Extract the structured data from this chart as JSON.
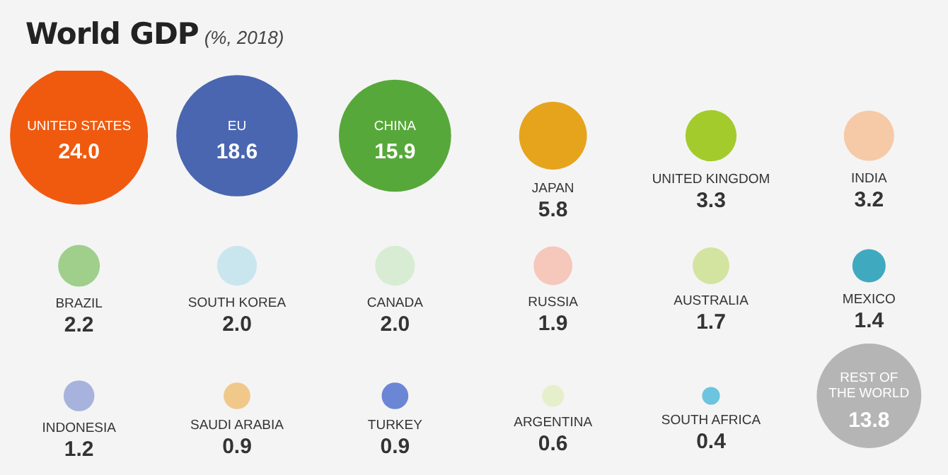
{
  "chart_data": {
    "type": "other",
    "title": "World GDP",
    "subtitle": "(%, 2018)",
    "categories": [
      "UNITED STATES",
      "EU",
      "CHINA",
      "JAPAN",
      "UNITED KINGDOM",
      "INDIA",
      "BRAZIL",
      "SOUTH KOREA",
      "CANADA",
      "RUSSIA",
      "AUSTRALIA",
      "MEXICO",
      "INDONESIA",
      "SAUDI ARABIA",
      "TURKEY",
      "ARGENTINA",
      "SOUTH AFRICA",
      "REST OF THE WORLD"
    ],
    "values": [
      24.0,
      18.6,
      15.9,
      5.8,
      3.3,
      3.2,
      2.2,
      2.0,
      2.0,
      1.9,
      1.7,
      1.4,
      1.2,
      0.9,
      0.9,
      0.6,
      0.4,
      13.8
    ],
    "colors": [
      "#ef5a0f",
      "#4a66b0",
      "#57a83a",
      "#e5a41c",
      "#a3cb2b",
      "#f6c9a7",
      "#9fcf8a",
      "#c9e6ee",
      "#d7ecd3",
      "#f6c7bb",
      "#d3e3a0",
      "#3fa9c0",
      "#a7b3dc",
      "#f0c98a",
      "#6c86d6",
      "#e6efcb",
      "#6cc4de",
      "#b5b5b5"
    ],
    "value_labels": [
      "24.0",
      "18.6",
      "15.9",
      "5.8",
      "3.3",
      "3.2",
      "2.2",
      "2.0",
      "2.0",
      "1.9",
      "1.7",
      "1.4",
      "1.2",
      "0.9",
      "0.9",
      "0.6",
      "0.4",
      "13.8"
    ]
  }
}
